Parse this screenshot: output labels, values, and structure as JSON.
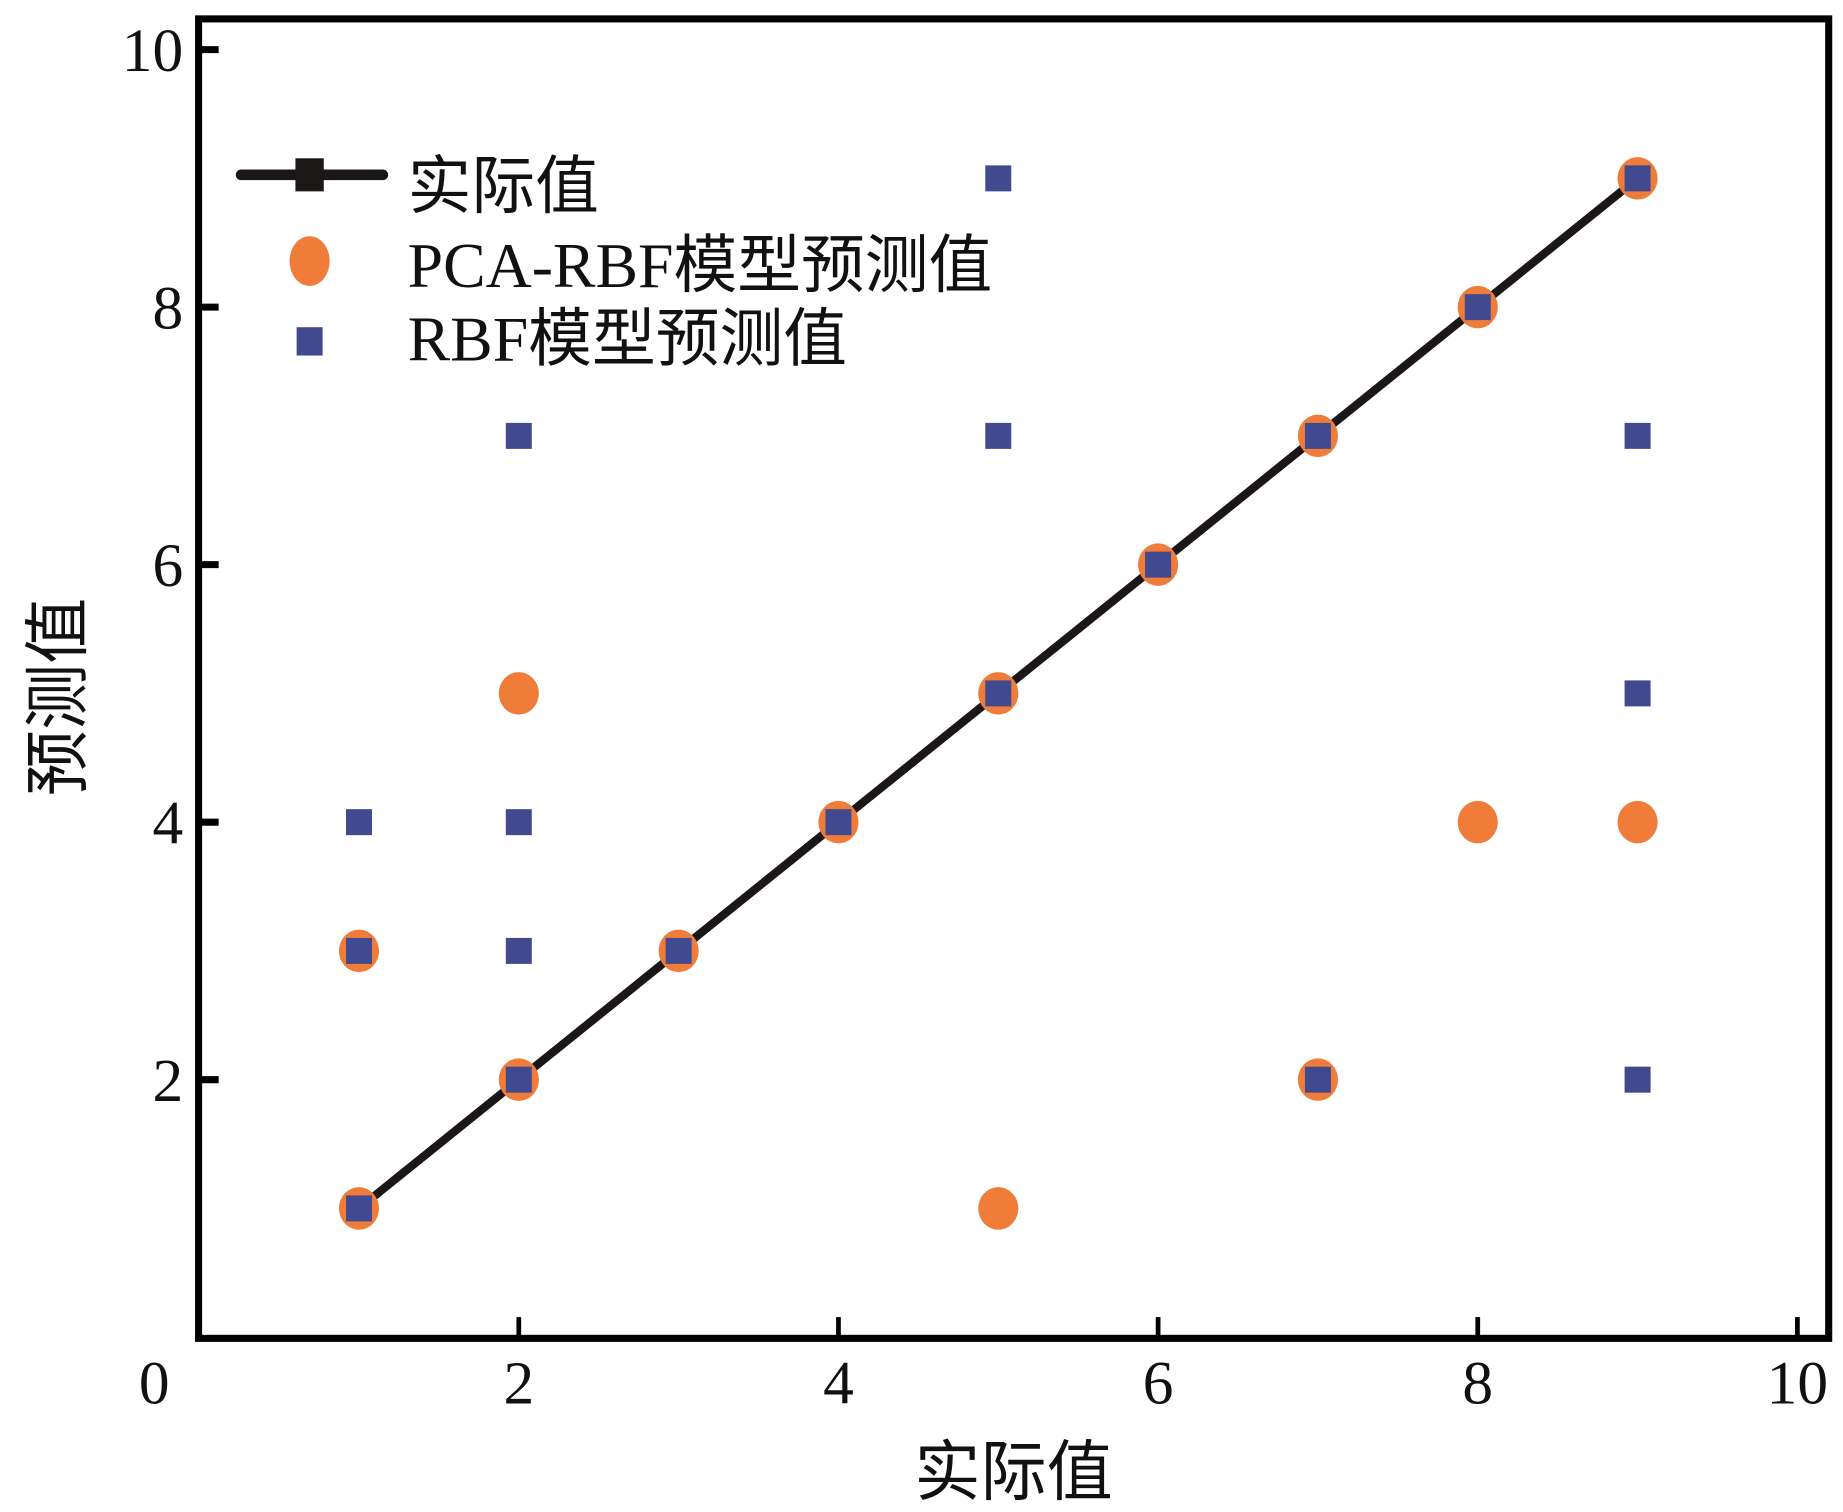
{
  "chart_data": {
    "type": "scatter",
    "title": "",
    "xlabel": "实际值",
    "ylabel": "预测值",
    "xlim": [
      0,
      10
    ],
    "ylim": [
      0,
      10
    ],
    "xticks": [
      "0",
      "2",
      "4",
      "6",
      "8",
      "10"
    ],
    "yticks": [
      "2",
      "4",
      "6",
      "8",
      "10"
    ],
    "grid": false,
    "legend_position": "top-left",
    "colors": {
      "actual": "#1a1716",
      "pca_rbf": "#f07c3a",
      "rbf": "#414a8e"
    },
    "series": [
      {
        "name": "实际值",
        "kind": "line",
        "x": [
          1,
          2,
          3,
          4,
          5,
          6,
          7,
          8,
          9
        ],
        "y": [
          1,
          2,
          3,
          4,
          5,
          6,
          7,
          8,
          9
        ]
      },
      {
        "name": "PCA-RBF模型预测值",
        "kind": "circle",
        "x": [
          1,
          1,
          2,
          2,
          3,
          4,
          5,
          5,
          6,
          7,
          7,
          8,
          8,
          9,
          9
        ],
        "y": [
          1,
          3,
          2,
          5,
          3,
          4,
          5,
          1,
          6,
          7,
          2,
          8,
          4,
          9,
          4
        ]
      },
      {
        "name": "RBF模型预测值",
        "kind": "square",
        "x": [
          1,
          1,
          1,
          2,
          2,
          2,
          2,
          3,
          4,
          5,
          5,
          5,
          6,
          7,
          7,
          8,
          9,
          9,
          9,
          9
        ],
        "y": [
          1,
          3,
          4,
          2,
          3,
          4,
          7,
          3,
          4,
          5,
          7,
          9,
          6,
          7,
          2,
          8,
          9,
          7,
          5,
          2
        ]
      }
    ]
  }
}
